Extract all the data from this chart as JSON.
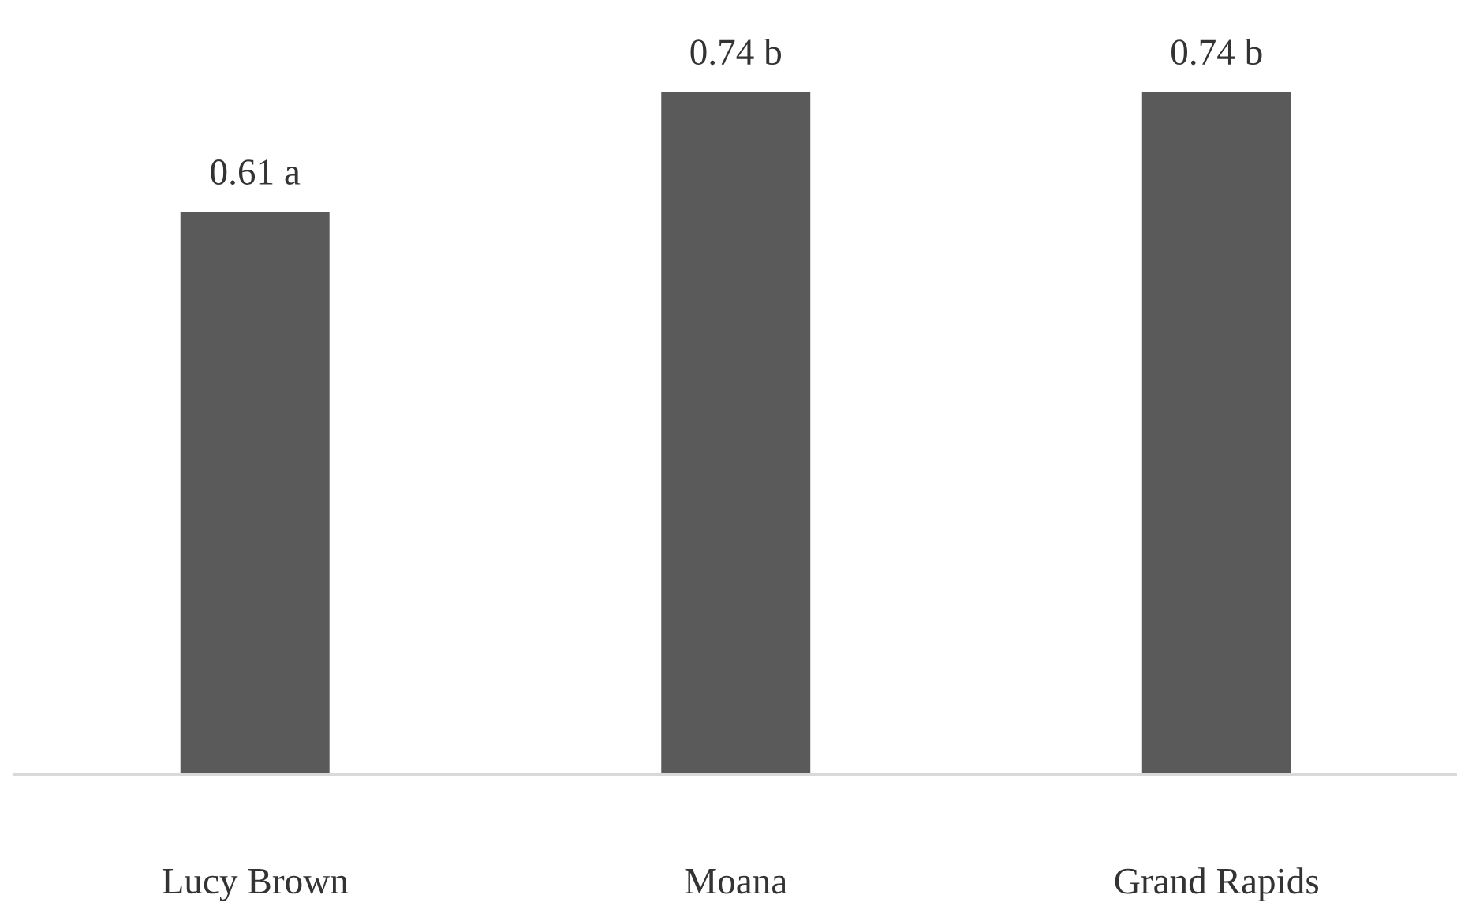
{
  "chart_data": {
    "type": "bar",
    "categories": [
      "Lucy Brown",
      "Moana",
      "Grand Rapids"
    ],
    "values": [
      0.61,
      0.74,
      0.74
    ],
    "value_labels": [
      "0.61 a",
      "0.74 b",
      "0.74 b"
    ],
    "color": "#5a5a5a",
    "tick_labels": "x",
    "grid": false,
    "legend": false
  }
}
